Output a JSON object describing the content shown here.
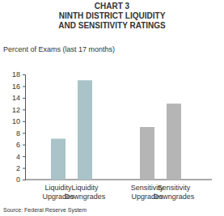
{
  "chart_data": {
    "type": "bar",
    "title": "CHART 3",
    "subtitle": "NINTH DISTRICT LIQUIDITY AND SENSITIVITY RATINGS",
    "y_label": "Percent of Exams (last 17 months)",
    "source": "Source: Federal Reserve System",
    "categories": [
      "Liquidity Upgrades",
      "Liquidity Downgrades",
      "Sensitivity Upgrades",
      "Sensitivity Downgrades"
    ],
    "values": [
      7,
      17,
      9,
      13
    ],
    "colors": [
      "#a9c3c8",
      "#a9c3c8",
      "#b5b5b5",
      "#b5b5b5"
    ],
    "ylim": [
      0,
      18
    ],
    "yticks": [
      0,
      2,
      4,
      6,
      8,
      10,
      12,
      14,
      16,
      18
    ],
    "grid": false
  }
}
